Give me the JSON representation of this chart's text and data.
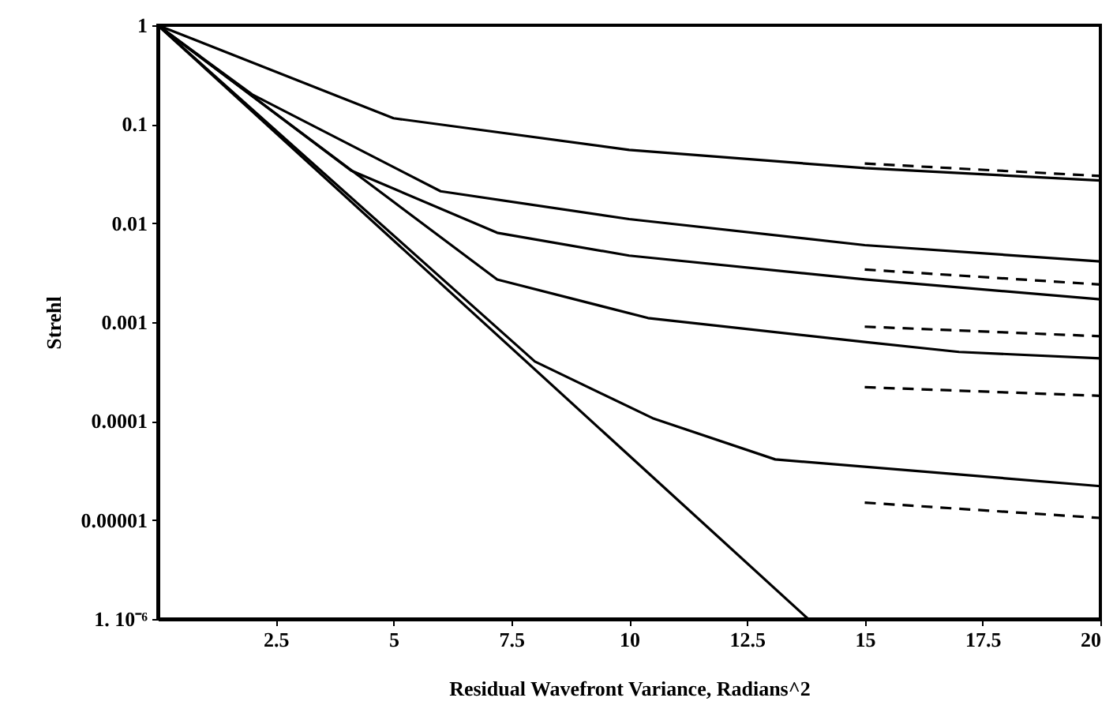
{
  "chart_data": {
    "type": "line",
    "xlabel": "Residual Wavefront Variance, Radians^2",
    "ylabel": "Strehl",
    "log": "y",
    "xlim": [
      0,
      20
    ],
    "ylim": [
      1e-06,
      1
    ],
    "xticks": [
      2.5,
      5,
      7.5,
      10,
      12.5,
      15,
      17.5,
      20
    ],
    "yticks": [
      {
        "value": 1e-06,
        "label": "1. 10⁻⁶"
      },
      {
        "value": 1e-05,
        "label": "0.00001"
      },
      0.0001,
      0.001,
      0.01,
      0.1,
      1
    ],
    "series": [
      {
        "color": "#000000",
        "line_style": "solid",
        "x": [
          0,
          13.8
        ],
        "values": [
          1,
          1e-06
        ]
      },
      {
        "color": "#000000",
        "line_style": "solid",
        "x": [
          0,
          5,
          10,
          15,
          20
        ],
        "values": [
          1,
          0.115,
          0.055,
          0.036,
          0.027
        ]
      },
      {
        "color": "#000000",
        "line_style": "solid",
        "x": [
          0,
          2,
          6,
          10,
          15,
          20
        ],
        "values": [
          1,
          0.2,
          0.021,
          0.011,
          0.006,
          0.0041
        ]
      },
      {
        "color": "#000000",
        "line_style": "solid",
        "x": [
          0,
          4.1,
          7.2,
          10,
          15,
          20
        ],
        "values": [
          1,
          0.034,
          0.008,
          0.0047,
          0.0027,
          0.0017
        ]
      },
      {
        "color": "#000000",
        "line_style": "solid",
        "x": [
          0,
          7.2,
          10.4,
          15,
          17,
          20
        ],
        "values": [
          1,
          0.0027,
          0.0011,
          0.00063,
          0.0005,
          0.00043
        ]
      },
      {
        "color": "#000000",
        "line_style": "solid",
        "x": [
          0,
          8,
          10.5,
          13.1,
          20
        ],
        "values": [
          1,
          0.0004,
          0.000107,
          4.1e-05,
          2.2e-05
        ]
      },
      {
        "color": "#000000",
        "line_style": "dashed",
        "x": [
          15,
          20
        ],
        "values": [
          0.04,
          0.03
        ]
      },
      {
        "color": "#000000",
        "line_style": "dashed",
        "x": [
          15,
          20
        ],
        "values": [
          0.0034,
          0.0024
        ]
      },
      {
        "color": "#000000",
        "line_style": "dashed",
        "x": [
          15,
          20
        ],
        "values": [
          0.0009,
          0.00072
        ]
      },
      {
        "color": "#000000",
        "line_style": "dashed",
        "x": [
          15,
          20
        ],
        "values": [
          0.00022,
          0.00018
        ]
      },
      {
        "color": "#000000",
        "line_style": "dashed",
        "x": [
          15,
          20
        ],
        "values": [
          1.5e-05,
          1.05e-05
        ]
      }
    ]
  }
}
